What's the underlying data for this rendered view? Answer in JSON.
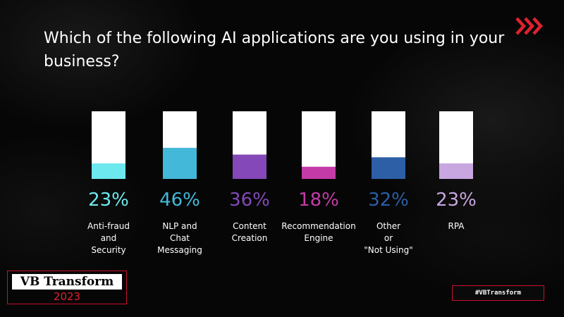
{
  "title": "Which of the following AI applications are you using in your business?",
  "colors": {
    "background": "#060606",
    "bar_track": "#ffffff",
    "accent_red": "#e0212f"
  },
  "chart_data": {
    "type": "bar",
    "title": "Which of the following AI applications are you using in your business?",
    "categories": [
      "Anti-fraud\nand\nSecurity",
      "NLP and\nChat\nMessaging",
      "Content\nCreation",
      "Recommendation\nEngine",
      "Other\nor\n\"Not Using\"",
      "RPA"
    ],
    "values": [
      23,
      46,
      36,
      18,
      32,
      23
    ],
    "value_labels": [
      "23%",
      "46%",
      "36%",
      "18%",
      "32%",
      "23%"
    ],
    "colors": [
      "#6de8ee",
      "#43b8d8",
      "#8448b8",
      "#c43aa6",
      "#2c5fa5",
      "#c8a6e0"
    ],
    "ylim": [
      0,
      100
    ],
    "unit": "%",
    "grid": false,
    "legend": "none"
  },
  "branding": {
    "event_name": "VB Transform",
    "event_year": "2023",
    "hashtag": "#VBTransform",
    "logo_icon": "double-chevron-right-icon"
  }
}
